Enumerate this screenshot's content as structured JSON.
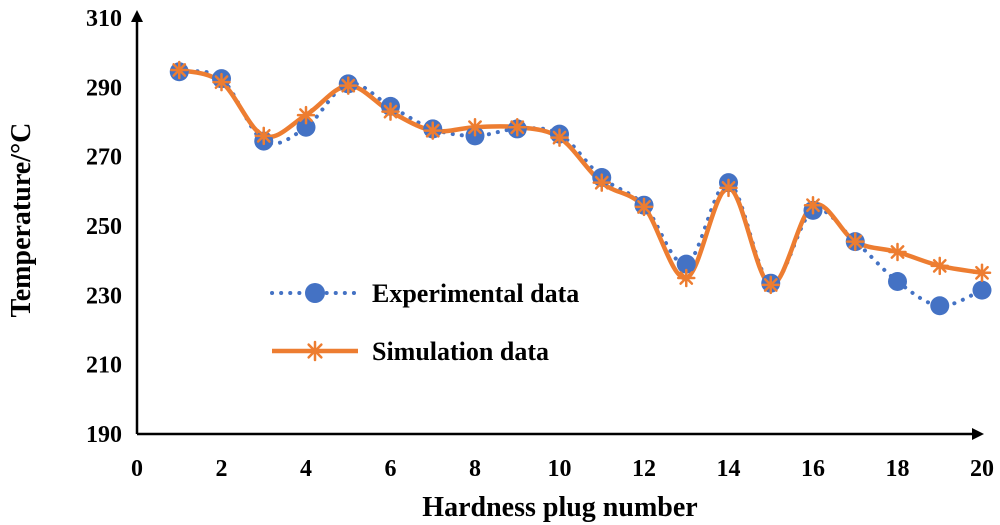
{
  "chart_data": {
    "type": "line",
    "title": "",
    "xlabel": "Hardness plug number",
    "ylabel": "Temperature/°C",
    "xlim": [
      0,
      20
    ],
    "ylim": [
      190,
      310
    ],
    "xticks": [
      0,
      2,
      4,
      6,
      8,
      10,
      12,
      14,
      16,
      18,
      20
    ],
    "yticks": [
      190,
      210,
      230,
      250,
      270,
      290,
      310
    ],
    "grid": false,
    "legend_position": "center-left",
    "series": [
      {
        "name": "Experimental data",
        "color": "#4472C4",
        "style": "dotted",
        "marker": "circle",
        "x": [
          1,
          2,
          3,
          4,
          5,
          6,
          7,
          8,
          9,
          10,
          11,
          12,
          13,
          14,
          15,
          16,
          17,
          18,
          19,
          20
        ],
        "values": [
          294.5,
          292.5,
          274.5,
          278.5,
          291,
          284.5,
          278,
          276,
          278,
          276.5,
          264,
          256,
          239,
          262.5,
          233.5,
          254.5,
          245.5,
          234,
          227,
          231.5
        ]
      },
      {
        "name": "Simulation data",
        "color": "#ED7D31",
        "style": "solid",
        "marker": "asterisk",
        "x": [
          1,
          2,
          3,
          4,
          5,
          6,
          7,
          8,
          9,
          10,
          11,
          12,
          13,
          14,
          15,
          16,
          17,
          18,
          19,
          20
        ],
        "values": [
          295,
          291.5,
          276,
          282,
          290.5,
          283,
          277.5,
          278.5,
          278.5,
          275.5,
          262.5,
          255.5,
          235,
          261,
          233,
          256,
          245.5,
          242.5,
          238.5,
          236.5
        ]
      }
    ]
  }
}
